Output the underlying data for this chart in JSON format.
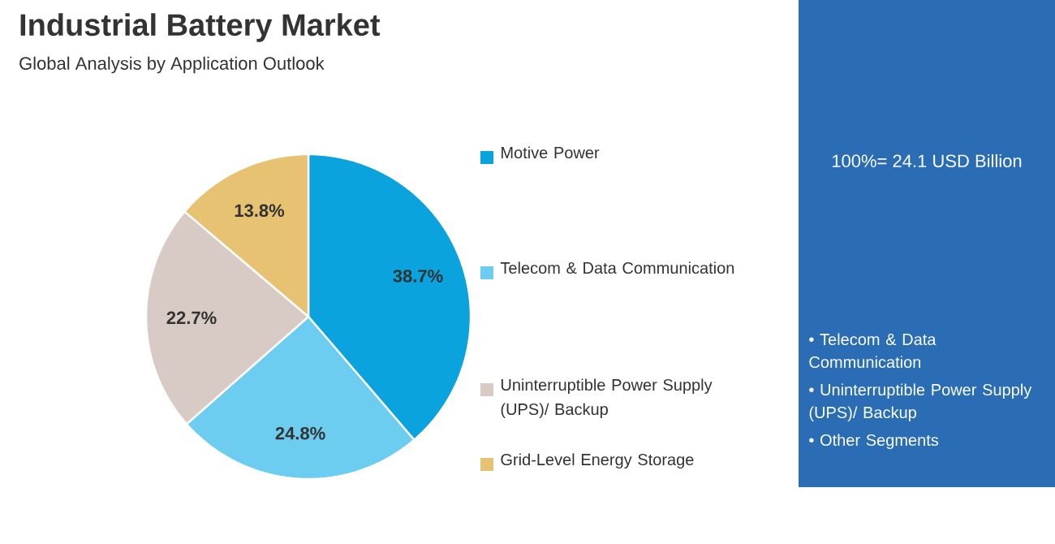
{
  "chart_data": {
    "type": "pie",
    "title": "Industrial Battery Market",
    "subtitle": "Global Analysis by Application Outlook",
    "categories": [
      "Motive Power",
      "Telecom & Data Communication",
      "Uninterruptible Power Supply (UPS)/ Backup",
      "Grid-Level Energy Storage"
    ],
    "values": [
      38.7,
      24.8,
      22.7,
      13.8
    ],
    "value_labels": [
      "38.7%",
      "24.8%",
      "22.7%",
      "13.8%"
    ],
    "colors": [
      "#0aa3dd",
      "#6dcdf0",
      "#d8cbc6",
      "#e8c273"
    ],
    "legend": "right",
    "annotations": [
      "100%= 24.1 USD Billion",
      "• Telecom & Data Communication",
      "• Uninterruptible Power Supply (UPS)/ Backup",
      "• Other Segments"
    ]
  }
}
